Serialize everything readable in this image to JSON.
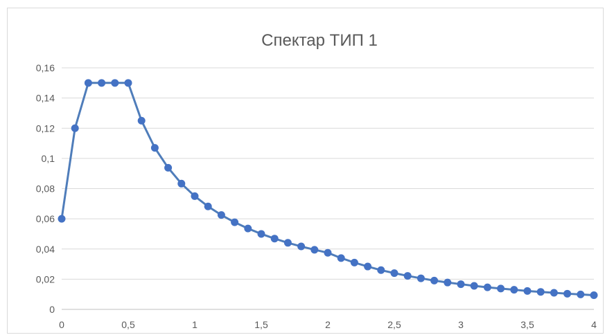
{
  "chart_data": {
    "type": "line",
    "title": "Спектар ТИП 1",
    "xlabel": "",
    "ylabel": "",
    "xlim": [
      0,
      4
    ],
    "ylim": [
      0,
      0.16
    ],
    "x_ticks": [
      {
        "value": 0,
        "label": "0"
      },
      {
        "value": 0.5,
        "label": "0,5"
      },
      {
        "value": 1,
        "label": "1"
      },
      {
        "value": 1.5,
        "label": "1,5"
      },
      {
        "value": 2,
        "label": "2"
      },
      {
        "value": 2.5,
        "label": "2,5"
      },
      {
        "value": 3,
        "label": "3"
      },
      {
        "value": 3.5,
        "label": "3,5"
      },
      {
        "value": 4,
        "label": "4"
      }
    ],
    "y_ticks": [
      {
        "value": 0,
        "label": "0"
      },
      {
        "value": 0.02,
        "label": "0,02"
      },
      {
        "value": 0.04,
        "label": "0,04"
      },
      {
        "value": 0.06,
        "label": "0,06"
      },
      {
        "value": 0.08,
        "label": "0,08"
      },
      {
        "value": 0.1,
        "label": "0,1"
      },
      {
        "value": 0.12,
        "label": "0,12"
      },
      {
        "value": 0.14,
        "label": "0,14"
      },
      {
        "value": 0.16,
        "label": "0,16"
      }
    ],
    "grid": true,
    "legend": "none",
    "series": [
      {
        "color": "#4f7dba",
        "marker_color": "#4472c4",
        "x": [
          0,
          0.1,
          0.2,
          0.3,
          0.4,
          0.5,
          0.6,
          0.7,
          0.8,
          0.9,
          1.0,
          1.1,
          1.2,
          1.3,
          1.4,
          1.5,
          1.6,
          1.7,
          1.8,
          1.9,
          2.0,
          2.1,
          2.2,
          2.3,
          2.4,
          2.5,
          2.6,
          2.7,
          2.8,
          2.9,
          3.0,
          3.1,
          3.2,
          3.3,
          3.4,
          3.5,
          3.6,
          3.7,
          3.8,
          3.9,
          4.0
        ],
        "y": [
          0.06,
          0.12,
          0.15,
          0.15,
          0.15,
          0.15,
          0.125,
          0.107,
          0.0938,
          0.0833,
          0.075,
          0.0682,
          0.0625,
          0.0577,
          0.0536,
          0.05,
          0.0469,
          0.0441,
          0.0417,
          0.0395,
          0.0375,
          0.034,
          0.031,
          0.0284,
          0.026,
          0.024,
          0.0222,
          0.0206,
          0.0191,
          0.0178,
          0.0167,
          0.0156,
          0.0146,
          0.0138,
          0.013,
          0.0122,
          0.0116,
          0.011,
          0.0104,
          0.0099,
          0.0094
        ]
      }
    ]
  }
}
